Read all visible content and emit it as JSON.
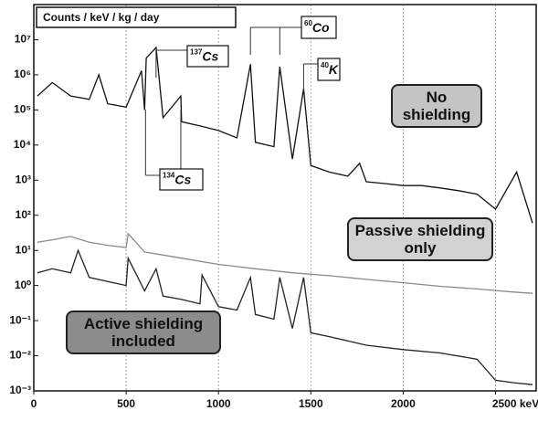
{
  "chart_data": {
    "type": "line",
    "y_label": "Counts / keV / kg / day",
    "log_y": true,
    "grid": true,
    "xlim": [
      0,
      2720
    ],
    "ylim": [
      0.001,
      100000000
    ],
    "xticks": [
      0,
      500,
      1000,
      1500,
      2000,
      {
        "value": 2500,
        "label": "2500 keV"
      }
    ],
    "yticks": [
      {
        "value": 0.001,
        "label": "10⁻³"
      },
      {
        "value": 0.01,
        "label": "10⁻²"
      },
      {
        "value": 0.1,
        "label": "10⁻¹"
      },
      {
        "value": 1,
        "label": "10⁰"
      },
      {
        "value": 10,
        "label": "10¹"
      },
      {
        "value": 100,
        "label": "10²"
      },
      {
        "value": 1000,
        "label": "10³"
      },
      {
        "value": 10000,
        "label": "10⁴"
      },
      {
        "value": 100000,
        "label": "10⁵"
      },
      {
        "value": 1000000,
        "label": "10⁶"
      },
      {
        "value": 10000000,
        "label": "10⁷"
      }
    ],
    "series": [
      {
        "name": "No shielding",
        "color": "#111111",
        "box_color": "#c4c4c4",
        "x": [
          20,
          100,
          200,
          300,
          352,
          400,
          500,
          583,
          600,
          609,
          662,
          700,
          796,
          800,
          900,
          1000,
          1100,
          1173,
          1200,
          1300,
          1332,
          1400,
          1461,
          1500,
          1600,
          1700,
          1764,
          1800,
          1900,
          2000,
          2100,
          2200,
          2300,
          2400,
          2500,
          2614,
          2700
        ],
        "values": [
          250000,
          600000,
          250000,
          200000,
          1000000,
          150000,
          120000,
          1300000,
          100000,
          3000000,
          6000000,
          60000,
          250000,
          46000,
          35000,
          26000,
          16000,
          2000000,
          12000,
          9000,
          1700000,
          4000,
          400000,
          2600,
          1700,
          1300,
          3000,
          900,
          800,
          700,
          700,
          600,
          500,
          400,
          150,
          1700,
          60
        ]
      },
      {
        "name": "Passive shielding only",
        "color": "#8a8a8a",
        "box_color": "#d2d2d2",
        "x": [
          20,
          100,
          200,
          300,
          400,
          500,
          511,
          600,
          800,
          1000,
          1200,
          1400,
          1600,
          1800,
          2000,
          2200,
          2400,
          2600,
          2700
        ],
        "values": [
          17,
          20,
          25,
          17,
          14,
          12,
          30,
          9,
          6,
          4,
          3,
          2.3,
          1.9,
          1.5,
          1.2,
          0.95,
          0.8,
          0.65,
          0.6
        ]
      },
      {
        "name": "Active shielding included",
        "color": "#222222",
        "box_color": "#8c8c8c",
        "x": [
          20,
          100,
          200,
          240,
          300,
          400,
          500,
          511,
          600,
          662,
          700,
          800,
          900,
          911,
          1000,
          1100,
          1173,
          1200,
          1300,
          1332,
          1400,
          1461,
          1500,
          1600,
          1800,
          2000,
          2200,
          2400,
          2500,
          2600,
          2700
        ],
        "values": [
          2.3,
          3,
          2.3,
          10,
          1.7,
          1.3,
          1,
          6,
          0.7,
          3,
          0.5,
          0.4,
          0.3,
          2,
          0.25,
          0.2,
          1.7,
          0.15,
          0.11,
          1.7,
          0.06,
          1.7,
          0.045,
          0.035,
          0.02,
          0.015,
          0.012,
          0.008,
          0.002,
          0.0017,
          0.0015
        ]
      }
    ],
    "annotations": [
      {
        "mass": "137",
        "element": "Cs",
        "energies": [
          662
        ]
      },
      {
        "mass": "60",
        "element": "Co",
        "energies": [
          1173,
          1332
        ]
      },
      {
        "mass": "40",
        "element": "K",
        "energies": [
          1461
        ]
      },
      {
        "mass": "134",
        "element": "Cs",
        "energies": [
          605,
          796
        ]
      }
    ]
  }
}
